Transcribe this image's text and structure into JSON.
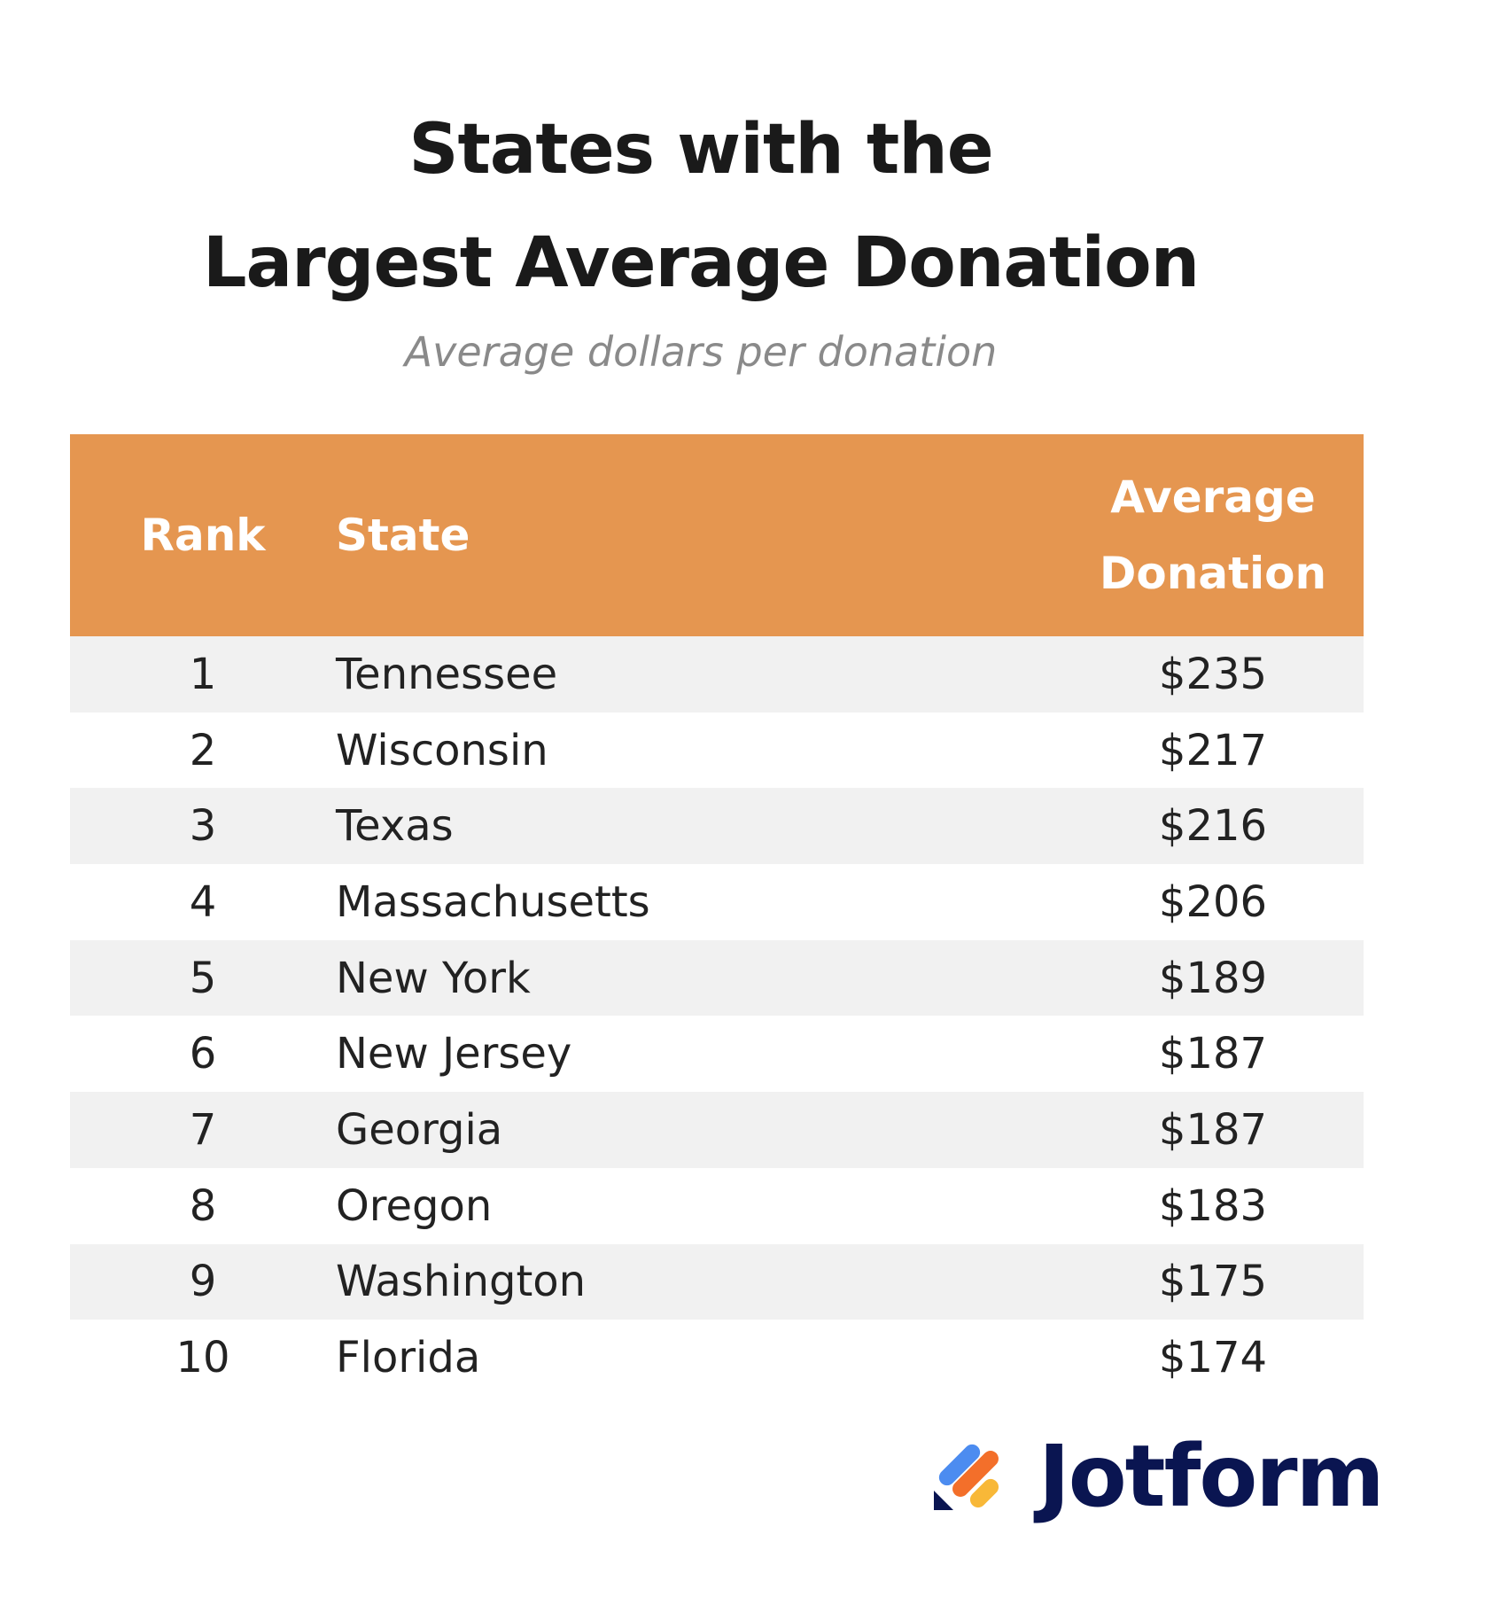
{
  "header": {
    "title": [
      "States with the",
      "Largest Average Donation"
    ],
    "subtitle": "Average dollars per donation"
  },
  "table": {
    "columns": [
      "Rank",
      "State",
      "Average Donation"
    ],
    "rows": [
      [
        1,
        "Tennessee",
        "$235"
      ],
      [
        2,
        "Wisconsin",
        "$217"
      ],
      [
        3,
        "Texas",
        "$216"
      ],
      [
        4,
        "Massachusetts",
        "$206"
      ],
      [
        5,
        "New York",
        "$189"
      ],
      [
        6,
        "New Jersey",
        "$187"
      ],
      [
        7,
        "Georgia",
        "$187"
      ],
      [
        8,
        "Oregon",
        "$183"
      ],
      [
        9,
        "Washington",
        "$175"
      ],
      [
        10,
        "Florida",
        "$174"
      ]
    ]
  },
  "footer": {
    "brand": "Jotform"
  }
}
